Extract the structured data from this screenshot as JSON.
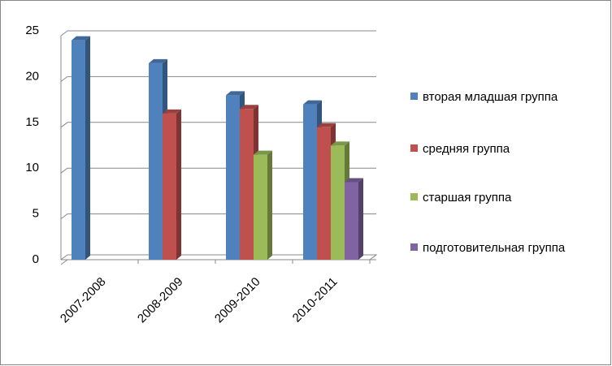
{
  "chart_data": {
    "type": "bar3d",
    "categories": [
      "2007-2008",
      "2008-2009",
      "2009-2010",
      "2010-2011"
    ],
    "series": [
      {
        "name": "вторая младшая группа",
        "color": "#4f81bd",
        "values": [
          24.5,
          22,
          18.5,
          17.5
        ]
      },
      {
        "name": "средняя группа",
        "color": "#c0504d",
        "values": [
          null,
          16.5,
          17,
          15
        ]
      },
      {
        "name": "старшая группа",
        "color": "#9bbb59",
        "values": [
          null,
          null,
          12,
          13
        ]
      },
      {
        "name": "подготовительная группа",
        "color": "#8064a2",
        "values": [
          null,
          null,
          null,
          9
        ]
      }
    ],
    "ylim": [
      0,
      25
    ],
    "yticks": [
      0,
      5,
      10,
      15,
      20,
      25
    ],
    "grid": true,
    "legend": "right"
  }
}
